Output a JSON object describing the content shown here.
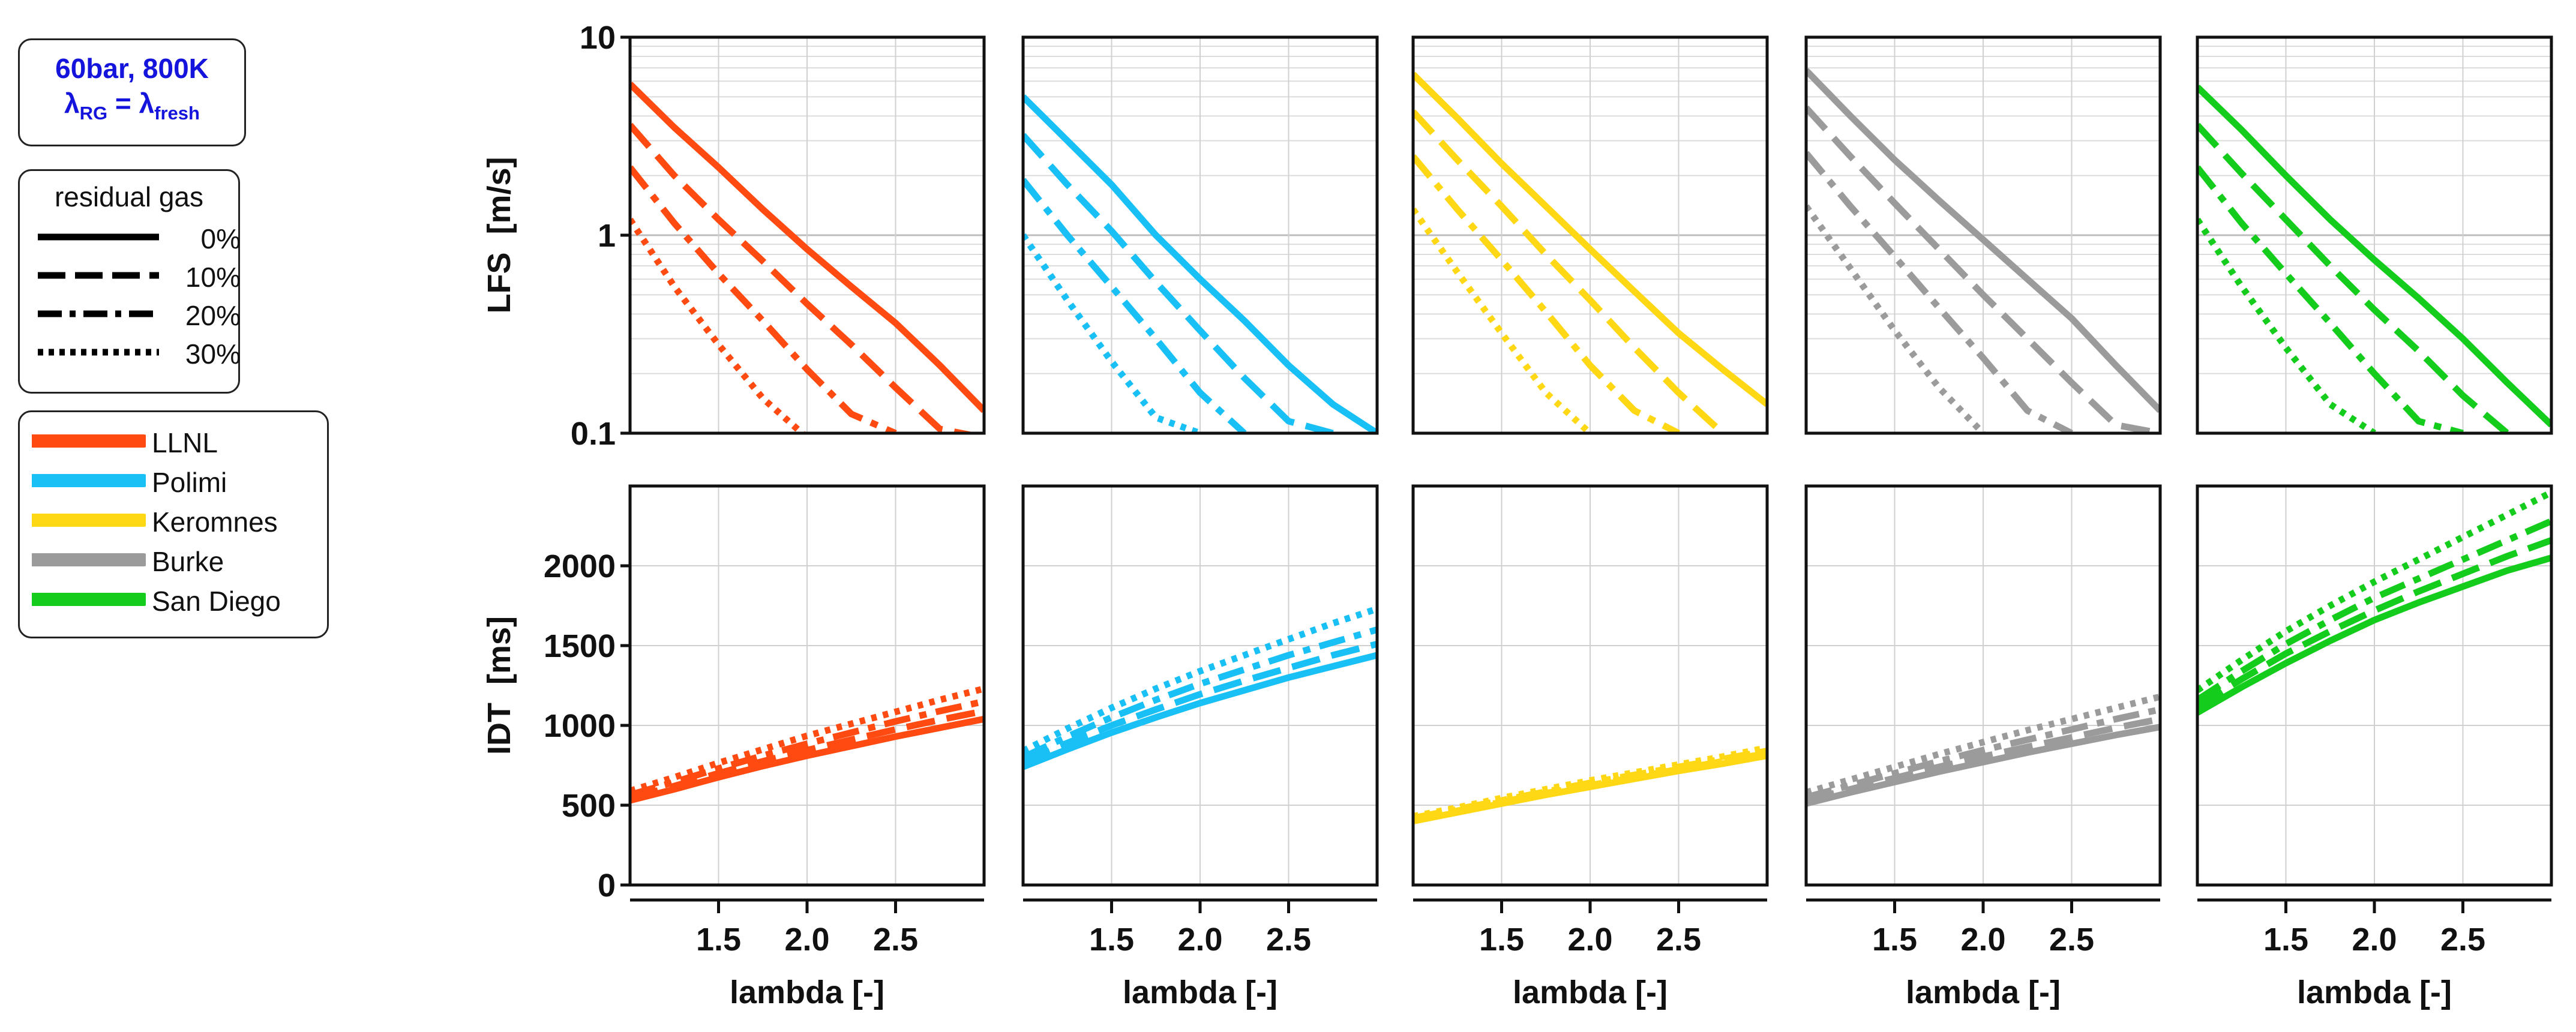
{
  "condition": {
    "line1": "60bar, 800K",
    "lambda_sym": "λ",
    "sub_rg": "RG",
    "equals": " = ",
    "sub_fresh": "fresh"
  },
  "residual_legend": {
    "title": "residual gas",
    "items": [
      {
        "label": "0%",
        "dash": "solid"
      },
      {
        "label": "10%",
        "dash": "dash"
      },
      {
        "label": "20%",
        "dash": "dashdot"
      },
      {
        "label": "30%",
        "dash": "dot"
      }
    ]
  },
  "model_legend": {
    "items": [
      {
        "label": "LLNL",
        "color": "#ff4a12"
      },
      {
        "label": "Polimi",
        "color": "#19c0f5"
      },
      {
        "label": "Keromnes",
        "color": "#ffd815"
      },
      {
        "label": "Burke",
        "color": "#9b9b9b"
      },
      {
        "label": "San Diego",
        "color": "#14cc1c"
      }
    ]
  },
  "chart_data": {
    "type": "line",
    "x": [
      1.0,
      1.25,
      1.5,
      1.75,
      2.0,
      2.25,
      2.5,
      2.75,
      3.0
    ],
    "x_range": [
      1.0,
      3.0
    ],
    "x_ticks": [
      1.5,
      2.0,
      2.5
    ],
    "x_tick_labels": [
      "1.5",
      "2.0",
      "2.5"
    ],
    "xlabel": "lambda [-]",
    "lfs_axis": {
      "ylabel": "LFS  [m/s]",
      "scale": "log",
      "ylim": [
        0.1,
        10
      ],
      "tick_labels": [
        {
          "value": 10,
          "label": "10"
        },
        {
          "value": 1,
          "label": "1"
        },
        {
          "value": 0.1,
          "label": "0.1"
        }
      ]
    },
    "idt_axis": {
      "ylabel": "IDT  [ms]",
      "ylim": [
        0,
        2500
      ],
      "ticks": [
        0,
        500,
        1000,
        1500,
        2000
      ],
      "tick_labels": [
        "0",
        "500",
        "1000",
        "1500",
        "2000"
      ]
    },
    "panels": [
      {
        "model": "LLNL",
        "color": "#ff4a12",
        "lfs": [
          {
            "residual": "0%",
            "values": [
              5.8,
              3.5,
              2.2,
              1.35,
              0.85,
              0.55,
              0.36,
              0.22,
              0.13
            ]
          },
          {
            "residual": "10%",
            "values": [
              3.6,
              2.0,
              1.2,
              0.74,
              0.45,
              0.28,
              0.17,
              0.105,
              0.095
            ]
          },
          {
            "residual": "20%",
            "values": [
              2.2,
              1.15,
              0.64,
              0.37,
              0.21,
              0.125,
              0.1
            ]
          },
          {
            "residual": "30%",
            "values": [
              1.2,
              0.55,
              0.28,
              0.15,
              0.095
            ]
          }
        ],
        "idt": [
          {
            "residual": "0%",
            "values": [
              530,
              600,
              675,
              745,
              810,
              870,
              930,
              985,
              1040
            ]
          },
          {
            "residual": "10%",
            "values": [
              545,
              620,
              700,
              775,
              845,
              910,
              975,
              1035,
              1090
            ]
          },
          {
            "residual": "20%",
            "values": [
              565,
              645,
              730,
              810,
              885,
              955,
              1025,
              1090,
              1150
            ]
          },
          {
            "residual": "30%",
            "values": [
              590,
              675,
              765,
              850,
              935,
              1010,
              1085,
              1160,
              1230
            ]
          }
        ]
      },
      {
        "model": "Polimi",
        "color": "#19c0f5",
        "lfs": [
          {
            "residual": "0%",
            "values": [
              5.0,
              3.0,
              1.8,
              1.0,
              0.6,
              0.37,
              0.22,
              0.14,
              0.1
            ]
          },
          {
            "residual": "10%",
            "values": [
              3.2,
              1.8,
              1.05,
              0.58,
              0.33,
              0.19,
              0.115,
              0.1
            ]
          },
          {
            "residual": "20%",
            "values": [
              1.9,
              1.0,
              0.55,
              0.3,
              0.16,
              0.1
            ]
          },
          {
            "residual": "30%",
            "values": [
              1.0,
              0.47,
              0.23,
              0.12,
              0.1
            ]
          }
        ],
        "idt": [
          {
            "residual": "0%",
            "values": [
              740,
              850,
              955,
              1050,
              1140,
              1220,
              1300,
              1370,
              1440
            ]
          },
          {
            "residual": "10%",
            "values": [
              770,
              890,
              1000,
              1100,
              1195,
              1280,
              1360,
              1440,
              1510
            ]
          },
          {
            "residual": "20%",
            "values": [
              800,
              930,
              1050,
              1160,
              1260,
              1350,
              1440,
              1520,
              1600
            ]
          },
          {
            "residual": "30%",
            "values": [
              840,
              980,
              1110,
              1230,
              1340,
              1440,
              1540,
              1640,
              1730
            ]
          }
        ]
      },
      {
        "model": "Keromnes",
        "color": "#ffd815",
        "lfs": [
          {
            "residual": "0%",
            "values": [
              6.5,
              3.9,
              2.3,
              1.4,
              0.85,
              0.52,
              0.32,
              0.21,
              0.14
            ]
          },
          {
            "residual": "10%",
            "values": [
              4.2,
              2.4,
              1.4,
              0.8,
              0.47,
              0.27,
              0.16,
              0.1
            ]
          },
          {
            "residual": "20%",
            "values": [
              2.5,
              1.35,
              0.75,
              0.41,
              0.22,
              0.13,
              0.1
            ]
          },
          {
            "residual": "30%",
            "values": [
              1.35,
              0.65,
              0.32,
              0.16,
              0.1
            ]
          }
        ],
        "idt": [
          {
            "residual": "0%",
            "values": [
              400,
              455,
              510,
              565,
              615,
              665,
              715,
              760,
              810
            ]
          },
          {
            "residual": "10%",
            "values": [
              410,
              465,
              520,
              575,
              625,
              675,
              725,
              775,
              825
            ]
          },
          {
            "residual": "20%",
            "values": [
              420,
              475,
              530,
              585,
              640,
              690,
              740,
              790,
              840
            ]
          },
          {
            "residual": "30%",
            "values": [
              430,
              485,
              545,
              600,
              655,
              705,
              755,
              805,
              860
            ]
          }
        ]
      },
      {
        "model": "Burke",
        "color": "#9b9b9b",
        "lfs": [
          {
            "residual": "0%",
            "values": [
              6.8,
              4.0,
              2.4,
              1.5,
              0.95,
              0.6,
              0.38,
              0.22,
              0.13
            ]
          },
          {
            "residual": "10%",
            "values": [
              4.4,
              2.5,
              1.45,
              0.85,
              0.5,
              0.3,
              0.18,
              0.11,
              0.1
            ]
          },
          {
            "residual": "20%",
            "values": [
              2.6,
              1.4,
              0.78,
              0.43,
              0.24,
              0.13,
              0.1
            ]
          },
          {
            "residual": "30%",
            "values": [
              1.4,
              0.68,
              0.33,
              0.17,
              0.1
            ]
          }
        ],
        "idt": [
          {
            "residual": "0%",
            "values": [
              510,
              580,
              645,
              710,
              770,
              830,
              885,
              940,
              990
            ]
          },
          {
            "residual": "10%",
            "values": [
              530,
              600,
              670,
              740,
              805,
              865,
              925,
              985,
              1040
            ]
          },
          {
            "residual": "20%",
            "values": [
              550,
              625,
              700,
              775,
              845,
              910,
              975,
              1040,
              1100
            ]
          },
          {
            "residual": "30%",
            "values": [
              580,
              660,
              740,
              820,
              895,
              970,
              1040,
              1110,
              1180
            ]
          }
        ]
      },
      {
        "model": "San Diego",
        "color": "#14cc1c",
        "lfs": [
          {
            "residual": "0%",
            "values": [
              5.6,
              3.4,
              2.0,
              1.2,
              0.75,
              0.48,
              0.3,
              0.18,
              0.11
            ]
          },
          {
            "residual": "10%",
            "values": [
              3.6,
              2.05,
              1.2,
              0.7,
              0.42,
              0.26,
              0.155,
              0.1
            ]
          },
          {
            "residual": "20%",
            "values": [
              2.2,
              1.15,
              0.64,
              0.36,
              0.2,
              0.115,
              0.1
            ]
          },
          {
            "residual": "30%",
            "values": [
              1.2,
              0.55,
              0.27,
              0.14,
              0.1
            ]
          }
        ],
        "idt": [
          {
            "residual": "0%",
            "values": [
              1080,
              1240,
              1390,
              1530,
              1660,
              1770,
              1870,
              1970,
              2050
            ]
          },
          {
            "residual": "10%",
            "values": [
              1120,
              1290,
              1450,
              1590,
              1720,
              1840,
              1950,
              2060,
              2160
            ]
          },
          {
            "residual": "20%",
            "values": [
              1160,
              1340,
              1510,
              1660,
              1800,
              1920,
              2040,
              2160,
              2280
            ]
          },
          {
            "residual": "30%",
            "values": [
              1220,
              1410,
              1590,
              1750,
              1900,
              2040,
              2180,
              2320,
              2460
            ]
          }
        ]
      }
    ]
  }
}
